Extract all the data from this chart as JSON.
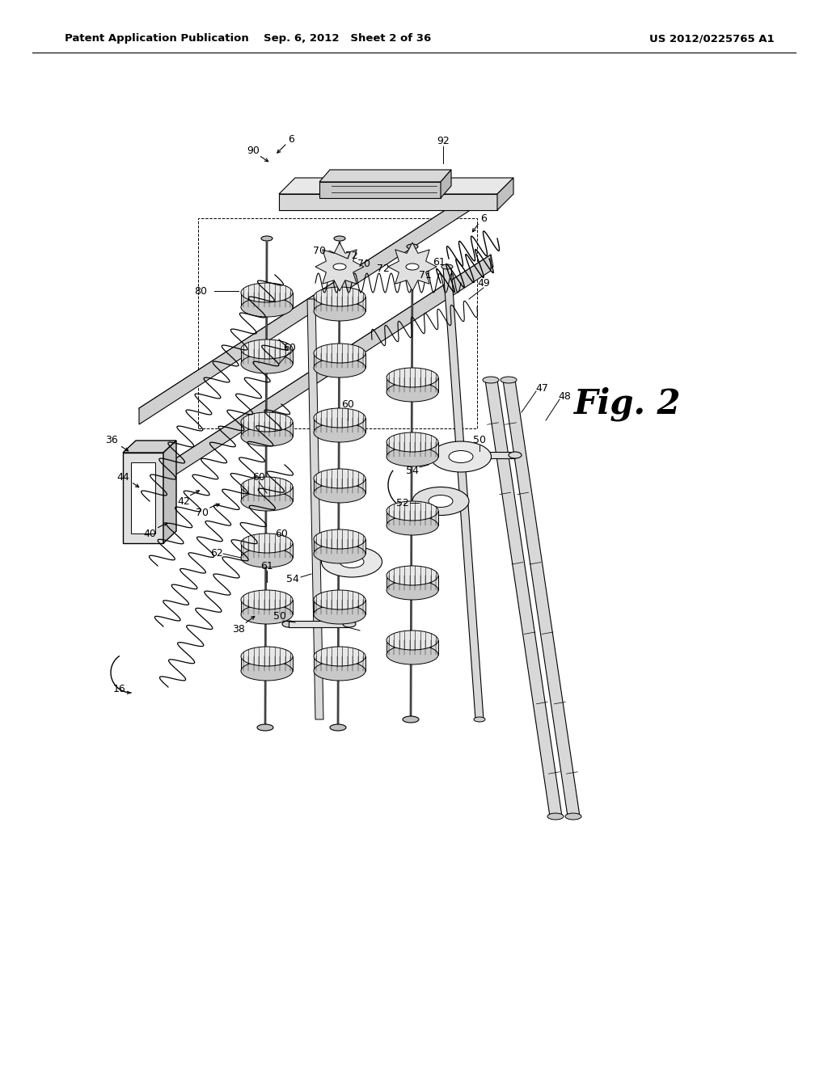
{
  "header_left": "Patent Application Publication",
  "header_center": "Sep. 6, 2012   Sheet 2 of 36",
  "header_right": "US 2012/0225765 A1",
  "fig_label": "Fig. 2",
  "bg_color": "#ffffff",
  "line_color": "#000000",
  "header_fontsize": 9.5,
  "fig_label_fontsize": 30,
  "ref_fontsize": 9
}
